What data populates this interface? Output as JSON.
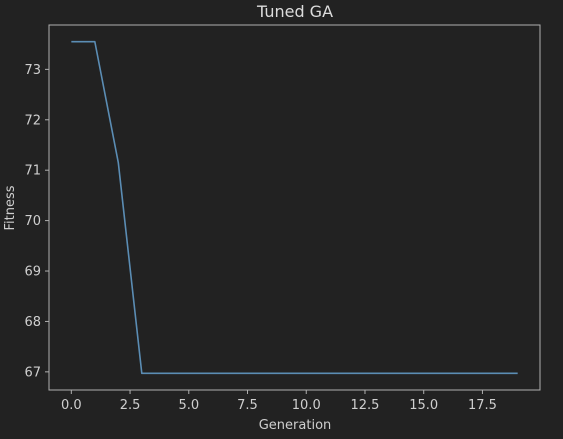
{
  "chart_data": {
    "type": "line",
    "title": "Tuned GA",
    "xlabel": "Generation",
    "ylabel": "Fitness",
    "x": [
      0,
      1,
      2,
      3,
      4,
      5,
      6,
      7,
      8,
      9,
      10,
      11,
      12,
      13,
      14,
      15,
      16,
      17,
      18,
      19
    ],
    "series": [
      {
        "values": [
          73.55,
          73.55,
          71.15,
          66.97,
          66.97,
          66.97,
          66.97,
          66.97,
          66.97,
          66.97,
          66.97,
          66.97,
          66.97,
          66.97,
          66.97,
          66.97,
          66.97,
          66.97,
          66.97,
          66.97
        ],
        "color": "#5b8db4"
      }
    ],
    "xticks": [
      "0.0",
      "2.5",
      "5.0",
      "7.5",
      "10.0",
      "12.5",
      "15.0",
      "17.5"
    ],
    "xtick_values": [
      0,
      2.5,
      5,
      7.5,
      10,
      12.5,
      15,
      17.5
    ],
    "yticks": [
      "67",
      "68",
      "69",
      "70",
      "71",
      "72",
      "73"
    ],
    "ytick_values": [
      67,
      68,
      69,
      70,
      71,
      72,
      73
    ],
    "xlim": [
      -0.95,
      19.95
    ],
    "ylim": [
      66.64,
      73.88
    ],
    "grid": false,
    "background": "#222222",
    "axes_color": "#b0b0b0"
  }
}
